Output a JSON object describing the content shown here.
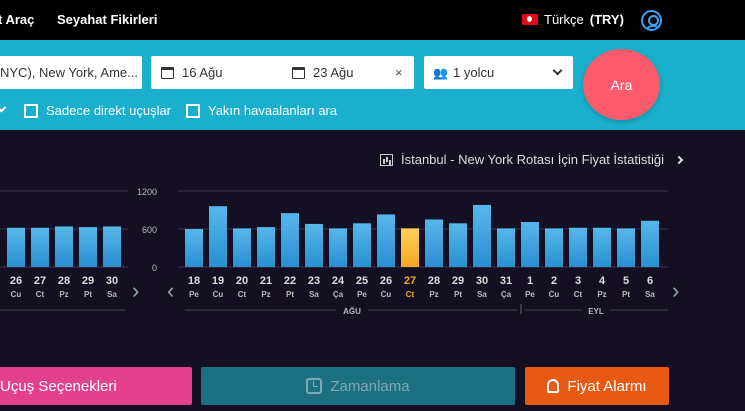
{
  "nav": {
    "link_car": "t Araç",
    "link_ideas": "Seyahat Fikirleri",
    "lang_name": "Türkçe",
    "lang_currency": "(TRY)"
  },
  "search": {
    "route_value": "NYC), New York, Ame...",
    "depart_date": "16 Ağu",
    "return_date": "23 Ağu",
    "clear_symbol": "×",
    "passengers": "1 yolcu",
    "search_label": "Ara",
    "opt_direct": "Sadece direkt uçuşlar",
    "opt_nearby": "Yakın havaalanları ara"
  },
  "stats_link": "İstanbul - New York Rotası İçin Fiyat İstatistiği",
  "chart_data": {
    "type": "bar",
    "ylim": [
      0,
      1200
    ],
    "yticks": [
      "1200",
      "600",
      "0"
    ],
    "selected_index": 9,
    "months": [
      "AĞU",
      "EYL"
    ],
    "left_group": {
      "days": [
        "26",
        "27",
        "28",
        "29",
        "30"
      ],
      "weekdays": [
        "Cu",
        "Ct",
        "Pz",
        "Pt",
        "Sa"
      ],
      "values": [
        620,
        620,
        640,
        630,
        640
      ]
    },
    "right_group": {
      "days": [
        "18",
        "19",
        "20",
        "21",
        "22",
        "23",
        "24",
        "25",
        "26",
        "27",
        "28",
        "29",
        "30",
        "31",
        "1",
        "2",
        "3",
        "4",
        "5",
        "6"
      ],
      "weekdays": [
        "Pe",
        "Cu",
        "Ct",
        "Pz",
        "Pt",
        "Sa",
        "Ça",
        "Pe",
        "Cu",
        "Ct",
        "Pz",
        "Pt",
        "Sa",
        "Ça",
        "Pe",
        "Cu",
        "Ct",
        "Pz",
        "Pt",
        "Sa"
      ],
      "values": [
        600,
        960,
        610,
        630,
        850,
        680,
        610,
        690,
        830,
        610,
        750,
        690,
        980,
        610,
        710,
        610,
        620,
        620,
        610,
        730
      ]
    }
  },
  "colors": {
    "bar": "#2a8fd1",
    "bar_top": "#56b7ea",
    "bar_selected": "#f5a623",
    "grid": "#3a3550",
    "axis_text": "#dddddd"
  },
  "buttons": {
    "options": "Uçuş Seçenekleri",
    "timing": "Zamanlama",
    "alarm": "Fiyat Alarmı"
  }
}
